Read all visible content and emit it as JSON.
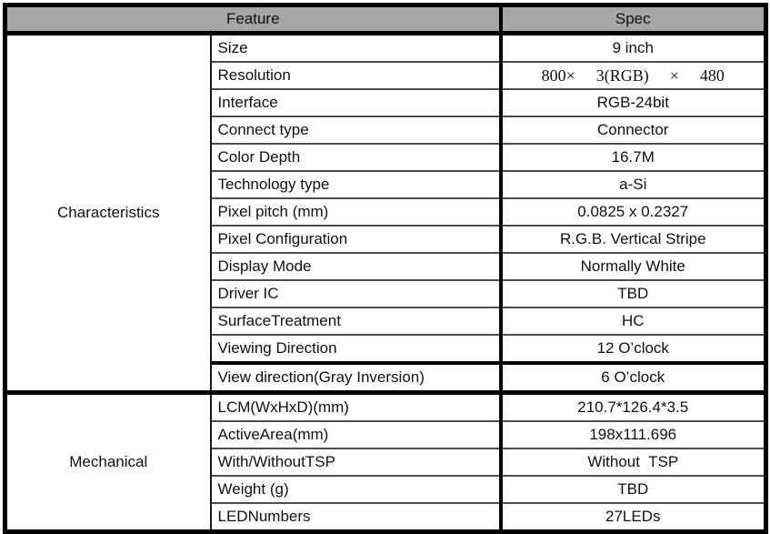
{
  "table": {
    "header": {
      "feature": "Feature",
      "spec": "Spec"
    },
    "sections": [
      {
        "name": "Characteristics",
        "rows": [
          {
            "feature": "Size",
            "spec": "9 inch"
          },
          {
            "feature": "Resolution",
            "spec": "800×  3(RGB)  ×  480"
          },
          {
            "feature": "Interface",
            "spec": "RGB-24bit"
          },
          {
            "feature": "Connect type",
            "spec": "Connector"
          },
          {
            "feature": "Color Depth",
            "spec": "16.7M"
          },
          {
            "feature": "Technology type",
            "spec": "a-Si"
          },
          {
            "feature": "Pixel pitch (mm)",
            "spec": "0.0825 x 0.2327"
          },
          {
            "feature": "Pixel Configuration",
            "spec": "R.G.B. Vertical Stripe"
          },
          {
            "feature": "Display Mode",
            "spec": "Normally White"
          },
          {
            "feature": "Driver IC",
            "spec": "TBD"
          },
          {
            "feature": "SurfaceTreatment",
            "spec": "HC"
          },
          {
            "feature": "Viewing Direction",
            "spec": "12 O’clock"
          },
          {
            "feature": "View direction(Gray Inversion)",
            "spec": "6 O’clock"
          }
        ]
      },
      {
        "name": "Mechanical",
        "rows": [
          {
            "feature": "LCM(WxHxD)(mm)",
            "spec": "210.7*126.4*3.5"
          },
          {
            "feature": "ActiveArea(mm)",
            "spec": "198x111.696"
          },
          {
            "feature": "With/WithoutTSP",
            "spec": "Without  TSP"
          },
          {
            "feature": "Weight (g)",
            "spec": "TBD"
          },
          {
            "feature": "LEDNumbers",
            "spec": "27LEDs"
          }
        ]
      }
    ],
    "colors": {
      "header_bg": "#a6a6a6",
      "outer_border": "#000000",
      "grid_line": "#4d4d4d"
    }
  }
}
